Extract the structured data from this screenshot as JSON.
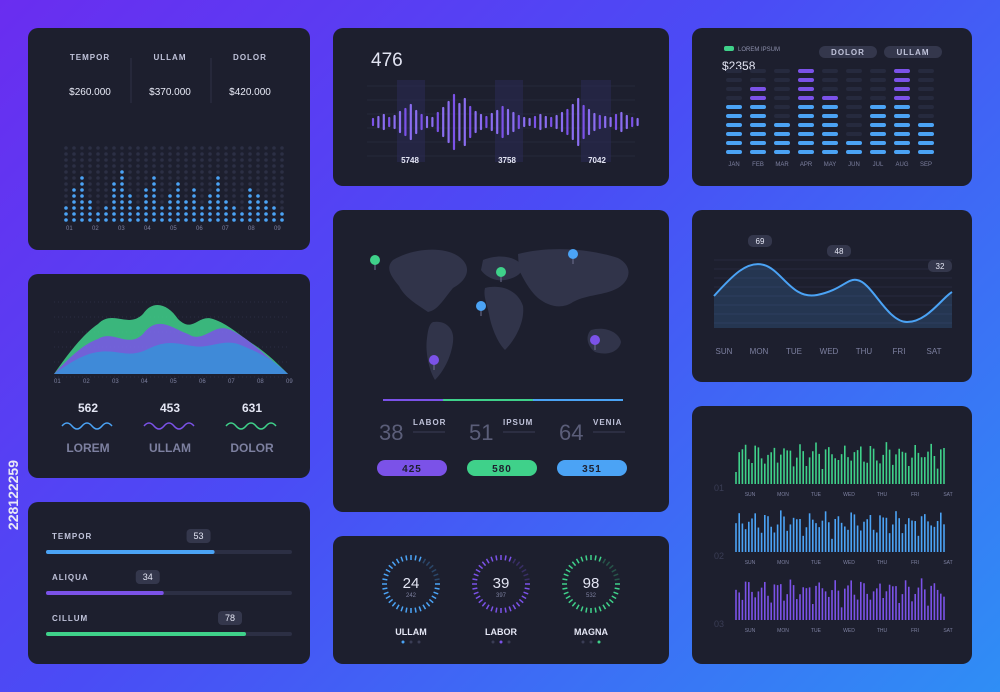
{
  "colors": {
    "cyan": "#4ba3f5",
    "purple": "#7b52e8",
    "green": "#3fd18a",
    "panel": "#1d1f2e"
  },
  "p1": {
    "cols": [
      {
        "label": "TEMPOR",
        "value": "$260.000"
      },
      {
        "label": "ULLAM",
        "value": "$370.000"
      },
      {
        "label": "DOLOR",
        "value": "$420.000"
      }
    ],
    "ticks": [
      "01",
      "02",
      "03",
      "04",
      "05",
      "06",
      "07",
      "08",
      "09"
    ]
  },
  "p2": {
    "value": "476",
    "labels": [
      "5748",
      "3758",
      "7042"
    ]
  },
  "p3": {
    "legend": "LOREM IPSUM",
    "value": "$2358",
    "btn1": "DOLOR",
    "btn2": "ULLAM"
  },
  "p4": {
    "ticks": [
      "01",
      "02",
      "03",
      "04",
      "05",
      "06",
      "07",
      "08",
      "09"
    ],
    "stats": [
      {
        "num": "562",
        "label": "LOREM"
      },
      {
        "num": "453",
        "label": "ULLAM"
      },
      {
        "num": "631",
        "label": "DOLOR"
      }
    ]
  },
  "p5": {
    "stats": [
      {
        "num": "38",
        "label": "LABOR"
      },
      {
        "num": "51",
        "label": "IPSUM"
      },
      {
        "num": "64",
        "label": "VENIA"
      }
    ],
    "pills": [
      "425",
      "580",
      "351"
    ]
  },
  "p6": {
    "labels": [
      "69",
      "48",
      "32"
    ],
    "days": [
      "SUN",
      "MON",
      "TUE",
      "WED",
      "THU",
      "FRI",
      "SAT"
    ]
  },
  "p7": {
    "rows": [
      "01",
      "02",
      "03"
    ],
    "days": [
      "SUN",
      "MON",
      "TUE",
      "WED",
      "THU",
      "FRI",
      "SAT"
    ]
  },
  "p8": {
    "bars": [
      {
        "label": "TEMPOR",
        "value": "53"
      },
      {
        "label": "ALIQUA",
        "value": "34"
      },
      {
        "label": "CILLUM",
        "value": "78"
      }
    ]
  },
  "p9": {
    "gauges": [
      {
        "value": "24",
        "sub": "242",
        "label": "ULLAM"
      },
      {
        "value": "39",
        "sub": "397",
        "label": "LABOR"
      },
      {
        "value": "98",
        "sub": "532",
        "label": "MAGNA"
      }
    ]
  },
  "watermark": "228122259",
  "chart_data": [
    {
      "type": "scatter",
      "title": "",
      "categories": [
        "01",
        "02",
        "03",
        "04",
        "05",
        "06",
        "07",
        "08",
        "09"
      ],
      "series": [
        {
          "values": [
            3,
            8,
            4,
            2,
            7,
            6,
            5,
            3,
            4
          ]
        }
      ]
    },
    {
      "type": "bar",
      "title": "476",
      "labels": [
        "5748",
        "3758",
        "7042"
      ]
    },
    {
      "type": "bar",
      "title": "$2358",
      "categories": [
        "JAN",
        "FEB",
        "MAR",
        "APR",
        "MAY",
        "JUN",
        "JUL",
        "AUG",
        "SEP"
      ],
      "values": [
        6,
        8,
        4,
        10,
        7,
        2,
        6,
        10,
        4
      ]
    },
    {
      "type": "area",
      "categories": [
        "01",
        "02",
        "03",
        "04",
        "05",
        "06",
        "07",
        "08",
        "09"
      ],
      "series": [
        {
          "values": [
            3,
            5,
            6,
            7,
            6,
            7,
            5,
            6,
            3
          ]
        },
        {
          "values": [
            2,
            4,
            3,
            6,
            5,
            4,
            6,
            5,
            3
          ]
        },
        {
          "values": [
            1,
            3,
            4,
            4,
            5,
            5,
            4,
            4,
            2
          ]
        }
      ]
    },
    {
      "type": "line",
      "categories": [
        "SUN",
        "MON",
        "TUE",
        "WED",
        "THU",
        "FRI",
        "SAT"
      ],
      "values": [
        45,
        62,
        69,
        40,
        48,
        30,
        32
      ],
      "annotations": [
        "69",
        "48",
        "32"
      ]
    },
    {
      "type": "bar",
      "title": "",
      "categories": [
        "SUN",
        "MON",
        "TUE",
        "WED",
        "THU",
        "FRI",
        "SAT"
      ],
      "series": [
        {
          "name": "01"
        },
        {
          "name": "02"
        },
        {
          "name": "03"
        }
      ]
    }
  ]
}
